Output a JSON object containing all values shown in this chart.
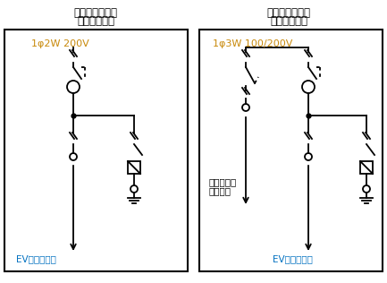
{
  "title_left_1": "「内部結線図」",
  "title_left_2": "主開閉器なし",
  "title_right_1": "「内部結線図」",
  "title_right_2": "主開閉器あり",
  "label_left_top": "1φ2W 200V",
  "label_right_top": "1φ3W 100/200V",
  "label_ev_left": "EV充電設備へ",
  "label_ev_right": "EV充電設備へ",
  "label_home_1": "既設ホーム",
  "label_home_2": "分電盤へ",
  "bg_color": "#ffffff",
  "border_color": "#000000",
  "title_color": "#000000",
  "label_color_top": "#c8890a",
  "label_color_ev": "#0070c0",
  "line_color": "#000000"
}
